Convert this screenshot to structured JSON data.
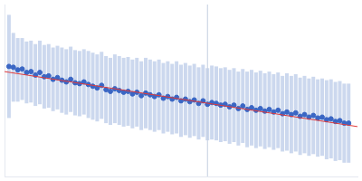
{
  "chart_data": {
    "type": "scatter",
    "x": [
      5,
      10,
      15,
      20,
      25,
      30,
      35,
      40,
      45,
      50,
      55,
      60,
      65,
      70,
      75,
      80,
      85,
      90,
      95,
      100,
      105,
      110,
      115,
      120,
      125,
      130,
      135,
      140,
      145,
      150,
      155,
      160,
      165,
      170,
      175,
      180,
      185,
      190,
      195,
      200,
      205,
      210,
      215,
      220,
      225,
      230,
      235,
      240,
      245,
      250,
      255,
      260,
      265,
      270,
      275,
      280,
      285,
      290,
      295,
      300,
      305,
      310,
      315,
      320,
      325,
      330,
      335,
      340,
      345,
      350,
      355,
      360,
      365,
      370,
      375,
      380,
      385,
      390
    ],
    "values": [
      128,
      127,
      124,
      125,
      121,
      122,
      118,
      121,
      116,
      117,
      113,
      115,
      112,
      110,
      113,
      109,
      108,
      110,
      107,
      105,
      103,
      106,
      101,
      99,
      102,
      100,
      98,
      99,
      96,
      98,
      94,
      97,
      95,
      93,
      95,
      91,
      93,
      90,
      92,
      88,
      90,
      87,
      89,
      85,
      88,
      84,
      86,
      85,
      83,
      84,
      81,
      83,
      79,
      82,
      78,
      80,
      77,
      79,
      76,
      78,
      75,
      77,
      73,
      75,
      72,
      74,
      70,
      72,
      69,
      71,
      68,
      69,
      66,
      67,
      64,
      65,
      62,
      62
    ],
    "errors": [
      60,
      40,
      37,
      36,
      36,
      36,
      36,
      37,
      37,
      37,
      37,
      37,
      38,
      38,
      38,
      38,
      38,
      38,
      39,
      39,
      39,
      39,
      39,
      39,
      40,
      40,
      40,
      40,
      40,
      40,
      40,
      41,
      41,
      41,
      41,
      41,
      41,
      41,
      42,
      42,
      42,
      42,
      42,
      42,
      42,
      42,
      43,
      43,
      43,
      43,
      43,
      43,
      43,
      43,
      44,
      44,
      44,
      44,
      44,
      44,
      44,
      44,
      44,
      45,
      45,
      45,
      45,
      45,
      45,
      45,
      45,
      45,
      46,
      46,
      46,
      46,
      46,
      46
    ],
    "color": "#3a66c4",
    "error_color": "#ccd8ee",
    "marker": "circle",
    "fit": {
      "type": "line",
      "x": [
        0,
        400
      ],
      "values": [
        122,
        58
      ],
      "color": "#e03a3a"
    },
    "vertical_line": 230,
    "xlim": [
      0,
      400
    ],
    "ylim": [
      0,
      200
    ],
    "grid": false,
    "tick_labels": false
  }
}
